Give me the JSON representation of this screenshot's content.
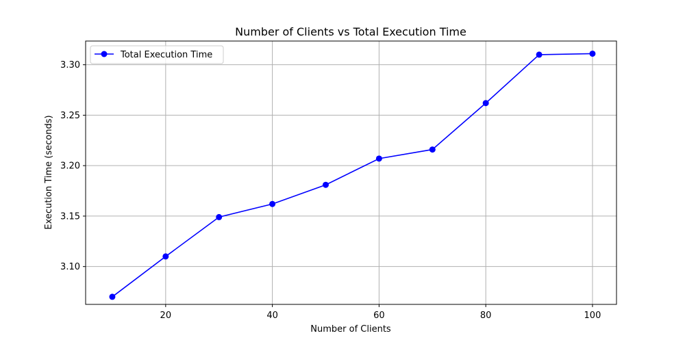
{
  "chart_data": {
    "type": "line",
    "title": "Number of Clients vs Total Execution Time",
    "xlabel": "Number of Clients",
    "ylabel": "Execution Time (seconds)",
    "xlim": [
      5,
      104.5
    ],
    "ylim": [
      3.0625,
      3.3235
    ],
    "xticks": [
      20,
      40,
      60,
      80,
      100
    ],
    "yticks": [
      3.1,
      3.15,
      3.2,
      3.25,
      3.3
    ],
    "xtick_labels": [
      "20",
      "40",
      "60",
      "80",
      "100"
    ],
    "ytick_labels": [
      "3.10",
      "3.15",
      "3.20",
      "3.25",
      "3.30"
    ],
    "grid": true,
    "legend_position": "top-left",
    "series": [
      {
        "name": "Total Execution Time",
        "color": "#0000ff",
        "marker": "circle",
        "x": [
          10,
          20,
          30,
          40,
          50,
          60,
          70,
          80,
          90,
          100
        ],
        "y": [
          3.07,
          3.11,
          3.149,
          3.162,
          3.181,
          3.207,
          3.216,
          3.262,
          3.31,
          3.311
        ]
      }
    ]
  }
}
